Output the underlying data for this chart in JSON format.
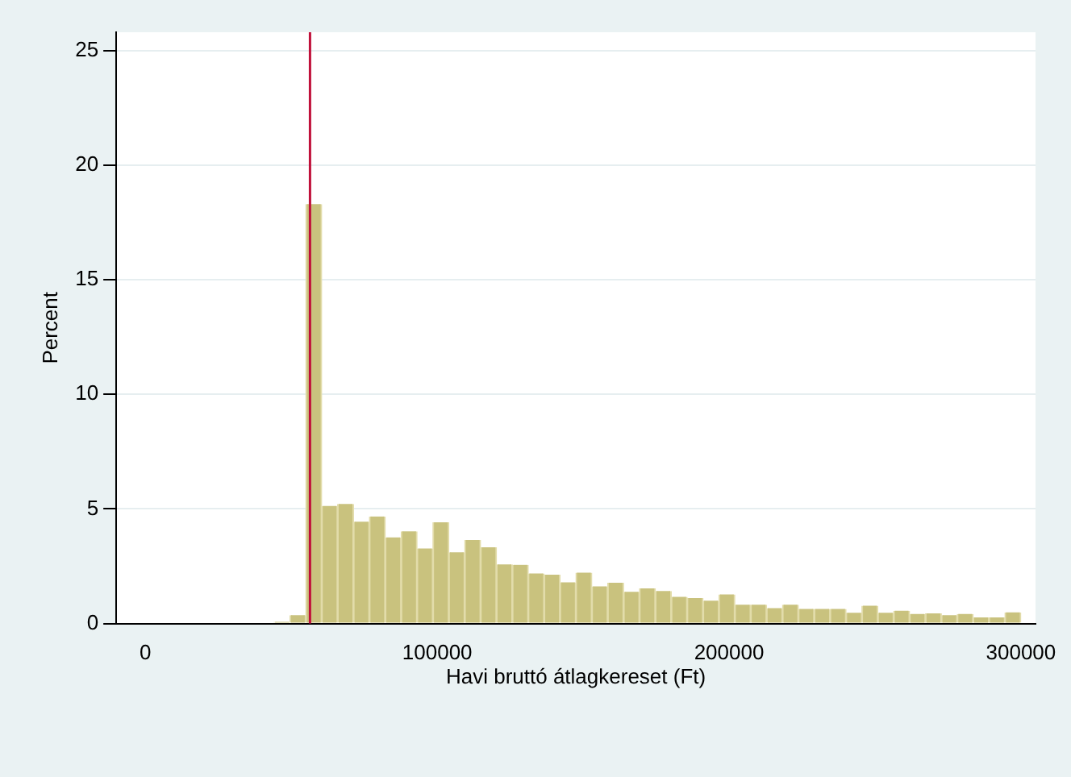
{
  "chart_data": {
    "type": "histogram",
    "xlabel": "Havi bruttó átlagkereset (Ft)",
    "ylabel": "Percent",
    "bins": [
      22300,
      27744,
      33189,
      38633,
      44078,
      49522,
      54966,
      60411,
      65855,
      71300,
      76744,
      82188,
      87633,
      93077,
      98522,
      103966,
      109410,
      114855,
      120299,
      125744,
      131188,
      136632,
      142077,
      147521,
      152966,
      158410,
      163854,
      169299,
      174743,
      180188,
      185632,
      191076,
      196521,
      201965,
      207410,
      212854,
      218298,
      223743,
      229187,
      234632,
      240076,
      245520,
      250965,
      256409,
      261854,
      267298,
      272742,
      278187,
      283631,
      289076,
      294520,
      299964
    ],
    "values": [
      null,
      null,
      null,
      null,
      0.07,
      0.36,
      18.3,
      5.13,
      5.22,
      4.44,
      4.67,
      3.76,
      4.02,
      3.27,
      4.42,
      3.11,
      3.64,
      3.33,
      2.58,
      2.56,
      2.18,
      2.13,
      1.8,
      2.22,
      1.62,
      1.78,
      1.38,
      1.53,
      1.42,
      1.16,
      1.11,
      1.0,
      1.27,
      0.82,
      0.82,
      0.67,
      0.82,
      0.64,
      0.64,
      0.64,
      0.47,
      0.78,
      0.47,
      0.56,
      0.42,
      0.44,
      0.36,
      0.42,
      0.27,
      0.27,
      0.49
    ],
    "color": "#c9c27e",
    "xlim": [
      -10000,
      305000
    ],
    "xticks": [
      0,
      100000,
      200000,
      300000
    ],
    "ylim": [
      0,
      25.8
    ],
    "yticks": [
      0,
      5,
      10,
      15,
      20,
      25
    ],
    "grid": "y",
    "ref_lines": [
      {
        "axis": "x",
        "value": 56400,
        "color": "#c0103a"
      }
    ]
  }
}
